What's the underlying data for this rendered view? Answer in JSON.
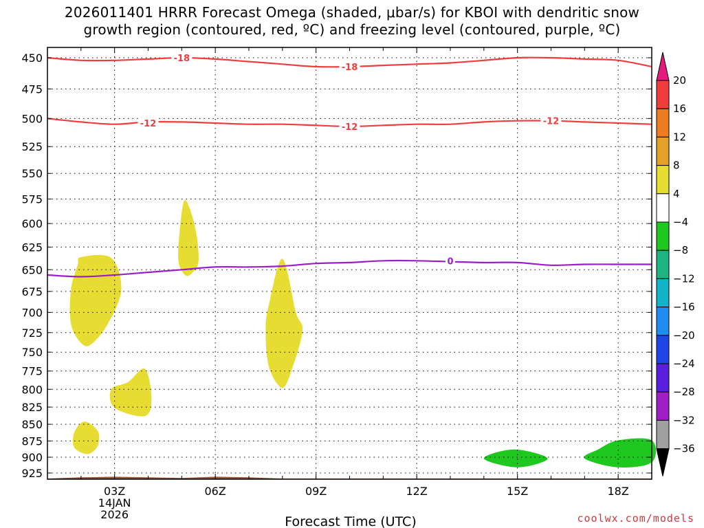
{
  "title": {
    "line1": "2026011401 HRRR Forecast Omega (shaded, μbar/s) for KBOI with dendritic snow",
    "line2": "growth region (contoured, red, ºC) and freezing level (contoured, purple, ºC)"
  },
  "credit": "coolwx.com/models",
  "chart_data": {
    "type": "area",
    "title": "2026011401 HRRR Forecast Omega (shaded, μbar/s) for KBOI with dendritic snow growth region (contoured, red, ºC) and freezing level (contoured, purple, ºC)",
    "xlabel": "Forecast Time (UTC)",
    "ylabel": "",
    "x_range_hours": [
      1,
      19
    ],
    "y_range_mb": [
      442,
      935
    ],
    "y_axis": "pressure (reversed, log scale)",
    "grid": true,
    "x_ticks": [
      {
        "hour": 3,
        "label": "03Z",
        "sub1": "14JAN",
        "sub2": "2026"
      },
      {
        "hour": 6,
        "label": "06Z",
        "sub1": "",
        "sub2": ""
      },
      {
        "hour": 9,
        "label": "09Z",
        "sub1": "",
        "sub2": ""
      },
      {
        "hour": 12,
        "label": "12Z",
        "sub1": "",
        "sub2": ""
      },
      {
        "hour": 15,
        "label": "15Z",
        "sub1": "",
        "sub2": ""
      },
      {
        "hour": 18,
        "label": "18Z",
        "sub1": "",
        "sub2": ""
      }
    ],
    "y_ticks": [
      450,
      475,
      500,
      525,
      550,
      575,
      600,
      625,
      650,
      675,
      700,
      725,
      750,
      775,
      800,
      825,
      850,
      875,
      900,
      925
    ],
    "contours": [
      {
        "label": "-18",
        "color": "#f03c3c",
        "points": [
          [
            1,
            450
          ],
          [
            2,
            452
          ],
          [
            3,
            452
          ],
          [
            4,
            451
          ],
          [
            5,
            450
          ],
          [
            6,
            451
          ],
          [
            7,
            453
          ],
          [
            8,
            455
          ],
          [
            9,
            457
          ],
          [
            10,
            457
          ],
          [
            11,
            456
          ],
          [
            12,
            455
          ],
          [
            13,
            454
          ],
          [
            14,
            452
          ],
          [
            15,
            450
          ],
          [
            16,
            450
          ],
          [
            17,
            451
          ],
          [
            18,
            452
          ],
          [
            19,
            457
          ]
        ],
        "label_at": [
          [
            5,
            450
          ],
          [
            10,
            457
          ]
        ]
      },
      {
        "label": "-12",
        "color": "#f03c3c",
        "points": [
          [
            1,
            500
          ],
          [
            2,
            503
          ],
          [
            3,
            505
          ],
          [
            4,
            503
          ],
          [
            5,
            503
          ],
          [
            6,
            504
          ],
          [
            7,
            505
          ],
          [
            8,
            505
          ],
          [
            9,
            506
          ],
          [
            10,
            507
          ],
          [
            11,
            506
          ],
          [
            12,
            505
          ],
          [
            13,
            505
          ],
          [
            14,
            503
          ],
          [
            15,
            502
          ],
          [
            16,
            502
          ],
          [
            17,
            503
          ],
          [
            18,
            504
          ],
          [
            19,
            505
          ]
        ],
        "label_at": [
          [
            4,
            504
          ],
          [
            10,
            507
          ],
          [
            16,
            502
          ]
        ]
      },
      {
        "label": "0",
        "color": "#9a1ec8",
        "points": [
          [
            1,
            656
          ],
          [
            2,
            658
          ],
          [
            3,
            656
          ],
          [
            4,
            653
          ],
          [
            5,
            650
          ],
          [
            6,
            647
          ],
          [
            7,
            647
          ],
          [
            8,
            646
          ],
          [
            9,
            643
          ],
          [
            10,
            642
          ],
          [
            11,
            640
          ],
          [
            12,
            640
          ],
          [
            13,
            641
          ],
          [
            14,
            642
          ],
          [
            15,
            642
          ],
          [
            16,
            645
          ],
          [
            17,
            644
          ],
          [
            18,
            644
          ],
          [
            19,
            644
          ]
        ],
        "label_at": [
          [
            13,
            640
          ]
        ]
      }
    ],
    "shaded_regions": [
      {
        "category": "4 to 8",
        "color": "#e6dc32",
        "polygon": [
          [
            2,
            636
          ],
          [
            2.9,
            637
          ],
          [
            3.2,
            673
          ],
          [
            2.8,
            714
          ],
          [
            2.3,
            740
          ],
          [
            2,
            738
          ],
          [
            1.7,
            714
          ],
          [
            1.7,
            673
          ],
          [
            1.9,
            645
          ]
        ]
      },
      {
        "category": "4 to 8",
        "color": "#e6dc32",
        "polygon": [
          [
            5.1,
            576
          ],
          [
            5.4,
            604
          ],
          [
            5.5,
            640
          ],
          [
            5.3,
            654
          ],
          [
            5.1,
            656
          ],
          [
            4.9,
            640
          ],
          [
            4.95,
            604
          ]
        ]
      },
      {
        "category": "4 to 8",
        "color": "#e6dc32",
        "polygon": [
          [
            8,
            638
          ],
          [
            8.4,
            700
          ],
          [
            8.6,
            722
          ],
          [
            8.3,
            770
          ],
          [
            8,
            798
          ],
          [
            7.6,
            770
          ],
          [
            7.5,
            722
          ],
          [
            7.6,
            690
          ]
        ]
      },
      {
        "category": "4 to 8",
        "color": "#e6dc32",
        "polygon": [
          [
            3.9,
            772
          ],
          [
            4.1,
            812
          ],
          [
            3.9,
            838
          ],
          [
            3,
            826
          ],
          [
            2.9,
            800
          ],
          [
            3.4,
            790
          ]
        ]
      },
      {
        "category": "4 to 8",
        "color": "#e6dc32",
        "polygon": [
          [
            2.1,
            846
          ],
          [
            2.5,
            860
          ],
          [
            2.5,
            882
          ],
          [
            2.2,
            895
          ],
          [
            1.8,
            885
          ],
          [
            1.8,
            862
          ]
        ]
      },
      {
        "category": "-8 to -4",
        "color": "#1ec81e",
        "polygon": [
          [
            14,
            902
          ],
          [
            14.9,
            888
          ],
          [
            15.9,
            902
          ],
          [
            15,
            916
          ]
        ]
      },
      {
        "category": "-8 to -4",
        "color": "#1ec81e",
        "polygon": [
          [
            17,
            902
          ],
          [
            17.4,
            888
          ],
          [
            18,
            874
          ],
          [
            19,
            874
          ],
          [
            19,
            908
          ],
          [
            18,
            916
          ]
        ]
      }
    ],
    "terrain": {
      "color": "#a0522d",
      "points": [
        [
          1,
          934
        ],
        [
          2,
          932
        ],
        [
          3,
          931
        ],
        [
          4,
          932
        ],
        [
          5,
          933
        ],
        [
          6,
          931
        ],
        [
          7,
          932
        ],
        [
          8,
          934
        ],
        [
          19,
          934
        ]
      ]
    },
    "colorbar": {
      "label_levels": [
        "20",
        "16",
        "12",
        "8",
        "4",
        "−4",
        "−8",
        "−12",
        "−16",
        "−20",
        "−24",
        "−28",
        "−32",
        "−36"
      ],
      "bins": [
        {
          "range": ">20",
          "color": "#e6197d"
        },
        {
          "range": "16 to 20",
          "color": "#f03c3c"
        },
        {
          "range": "12 to 16",
          "color": "#ef7b23"
        },
        {
          "range": "8 to 12",
          "color": "#e6a228"
        },
        {
          "range": "4 to 8",
          "color": "#e6dc32"
        },
        {
          "range": "-4 to 4",
          "color": "#ffffff"
        },
        {
          "range": "-8 to -4",
          "color": "#1ec81e"
        },
        {
          "range": "-12 to -8",
          "color": "#1eb482"
        },
        {
          "range": "-16 to -12",
          "color": "#14b4c8"
        },
        {
          "range": "-20 to -16",
          "color": "#1e8cf0"
        },
        {
          "range": "-24 to -20",
          "color": "#1e46e6"
        },
        {
          "range": "-28 to -24",
          "color": "#5a1edc"
        },
        {
          "range": "-32 to -28",
          "color": "#a01ec8"
        },
        {
          "range": "-36 to -32",
          "color": "#a0a0a0"
        },
        {
          "range": "<-36",
          "color": "#000000"
        }
      ]
    }
  }
}
